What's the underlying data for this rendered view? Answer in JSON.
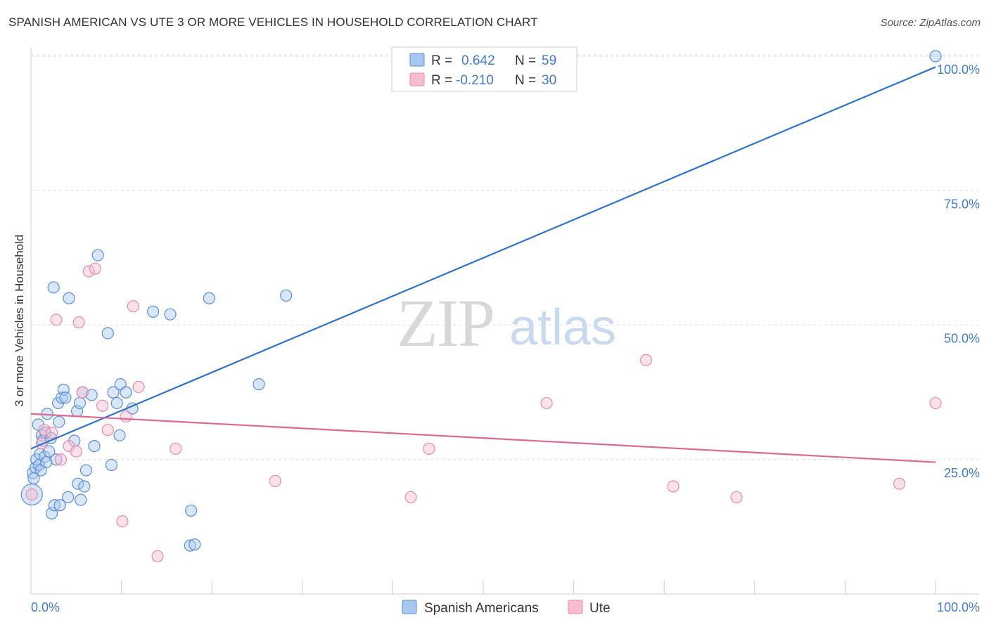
{
  "title": "SPANISH AMERICAN VS UTE 3 OR MORE VEHICLES IN HOUSEHOLD CORRELATION CHART",
  "source": "Source: ZipAtlas.com",
  "watermark": {
    "zip": "ZIP",
    "atlas": "atlas"
  },
  "colors": {
    "blue_fill": "#a9c8f0",
    "blue_stroke": "#5b8fd6",
    "blue_line": "#2d74cf",
    "pink_fill": "#f7bcd0",
    "pink_stroke": "#e88aab",
    "pink_line": "#e0678f",
    "axis_text": "#3e7bd0",
    "grid": "#dddddd"
  },
  "legend_top": {
    "rows": [
      {
        "r_label": "R =",
        "r_value": "0.642",
        "n_label": "N =",
        "n_value": "59"
      },
      {
        "r_label": "R =",
        "r_value": "-0.210",
        "n_label": "N =",
        "n_value": "30"
      }
    ]
  },
  "legend_bottom": [
    "Spanish Americans",
    "Ute"
  ],
  "chart_data": {
    "type": "scatter",
    "title": "SPANISH AMERICAN VS UTE 3 OR MORE VEHICLES IN HOUSEHOLD CORRELATION CHART",
    "xlabel": "",
    "ylabel": "3 or more Vehicles in Household",
    "xlim": [
      0,
      100
    ],
    "ylim": [
      0,
      102
    ],
    "x_tick_labels": [
      "0.0%",
      "100.0%"
    ],
    "y_tick_labels": [
      "25.0%",
      "50.0%",
      "75.0%",
      "100.0%"
    ],
    "y_ticks": [
      25,
      50,
      75,
      100
    ],
    "series": [
      {
        "name": "Spanish Americans",
        "r": 0.642,
        "n": 59,
        "trend": {
          "x": [
            0,
            100
          ],
          "y": [
            27,
            98
          ]
        },
        "points": [
          [
            0.1,
            18.5
          ],
          [
            0.2,
            22.5
          ],
          [
            0.3,
            21.5
          ],
          [
            0.5,
            23.5
          ],
          [
            0.6,
            25
          ],
          [
            0.8,
            31.5
          ],
          [
            0.9,
            24
          ],
          [
            1.0,
            26
          ],
          [
            1.1,
            23
          ],
          [
            1.2,
            29.5
          ],
          [
            1.3,
            28.5
          ],
          [
            1.5,
            25.5
          ],
          [
            1.6,
            30
          ],
          [
            1.7,
            24.5
          ],
          [
            1.8,
            33.5
          ],
          [
            2.0,
            26.5
          ],
          [
            2.2,
            29
          ],
          [
            2.3,
            15
          ],
          [
            2.5,
            57
          ],
          [
            2.6,
            16.5
          ],
          [
            2.8,
            25
          ],
          [
            3.0,
            35.5
          ],
          [
            3.1,
            32
          ],
          [
            3.2,
            16.5
          ],
          [
            3.4,
            36.5
          ],
          [
            3.6,
            38
          ],
          [
            3.8,
            36.5
          ],
          [
            4.2,
            55
          ],
          [
            4.1,
            18
          ],
          [
            4.8,
            28.5
          ],
          [
            5.1,
            34
          ],
          [
            5.2,
            20.5
          ],
          [
            5.4,
            35.5
          ],
          [
            5.5,
            17.5
          ],
          [
            5.7,
            37.5
          ],
          [
            5.9,
            20
          ],
          [
            6.1,
            23
          ],
          [
            6.7,
            37
          ],
          [
            7.0,
            27.5
          ],
          [
            7.4,
            63
          ],
          [
            8.5,
            48.5
          ],
          [
            8.9,
            24
          ],
          [
            9.1,
            37.5
          ],
          [
            9.5,
            35.5
          ],
          [
            9.8,
            29.5
          ],
          [
            9.9,
            39
          ],
          [
            10.5,
            37.5
          ],
          [
            11.2,
            34.5
          ],
          [
            13.5,
            52.5
          ],
          [
            15.4,
            52
          ],
          [
            17.6,
            9
          ],
          [
            17.7,
            15.5
          ],
          [
            18.1,
            9.2
          ],
          [
            19.7,
            55
          ],
          [
            25.2,
            39
          ],
          [
            28.2,
            55.5
          ],
          [
            100,
            100
          ]
        ]
      },
      {
        "name": "Ute",
        "r": -0.21,
        "n": 30,
        "trend": {
          "x": [
            0,
            100
          ],
          "y": [
            33.5,
            24.5
          ]
        },
        "points": [
          [
            0.1,
            18.5
          ],
          [
            1.2,
            28
          ],
          [
            1.5,
            30.5
          ],
          [
            2.3,
            30
          ],
          [
            2.8,
            51
          ],
          [
            3.3,
            25
          ],
          [
            4.2,
            27.5
          ],
          [
            5.0,
            26.5
          ],
          [
            5.3,
            50.5
          ],
          [
            5.7,
            37.5
          ],
          [
            6.4,
            60
          ],
          [
            7.1,
            60.5
          ],
          [
            7.9,
            35
          ],
          [
            8.5,
            30.5
          ],
          [
            10.1,
            13.5
          ],
          [
            10.5,
            33
          ],
          [
            11.3,
            53.5
          ],
          [
            11.9,
            38.5
          ],
          [
            14.0,
            7
          ],
          [
            16.0,
            27
          ],
          [
            27.0,
            21
          ],
          [
            42.0,
            18
          ],
          [
            44.0,
            27
          ],
          [
            57.0,
            35.5
          ],
          [
            68.0,
            43.5
          ],
          [
            71.0,
            20
          ],
          [
            78.0,
            18
          ],
          [
            96.0,
            20.5
          ],
          [
            100,
            35.5
          ]
        ]
      }
    ]
  }
}
